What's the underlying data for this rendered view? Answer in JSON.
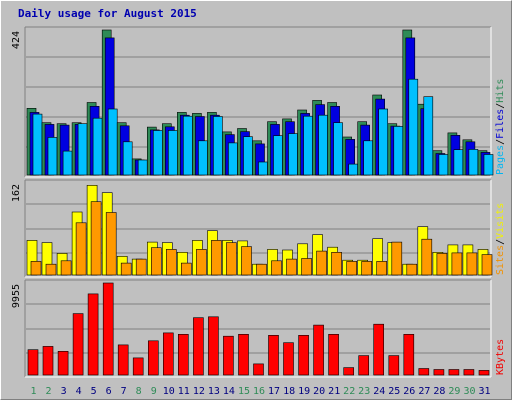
{
  "title": "Daily usage for August 2015",
  "colors": {
    "hits": "#2e8b57",
    "files": "#0000e0",
    "pages": "#00c0ff",
    "visits": "#ffff00",
    "sites": "#ff9900",
    "kbytes": "#ff0000",
    "panel_bg": "#c0c0c0",
    "grid": "#808080",
    "title": "#0000b0"
  },
  "chart_data": [
    {
      "type": "bar",
      "panel": "hits-files-pages",
      "ymax_label": "424",
      "ylim": [
        0,
        424
      ],
      "legend": [
        "Pages",
        "/",
        "Files",
        "/",
        "Hits"
      ],
      "categories": [
        "1",
        "2",
        "3",
        "4",
        "5",
        "6",
        "7",
        "8",
        "9",
        "10",
        "11",
        "12",
        "13",
        "14",
        "15",
        "16",
        "17",
        "18",
        "19",
        "20",
        "21",
        "22",
        "23",
        "24",
        "25",
        "26",
        "27",
        "28",
        "29",
        "30",
        "31"
      ],
      "series": [
        {
          "name": "Hits",
          "values": [
            195,
            153,
            150,
            153,
            212,
            424,
            153,
            47,
            140,
            150,
            183,
            180,
            183,
            126,
            136,
            100,
            156,
            164,
            190,
            218,
            212,
            111,
            156,
            234,
            150,
            424,
            207,
            71,
            123,
            103,
            71
          ]
        },
        {
          "name": "Files",
          "values": [
            183,
            148,
            146,
            148,
            201,
            401,
            144,
            44,
            132,
            141,
            175,
            171,
            175,
            118,
            127,
            91,
            148,
            156,
            180,
            206,
            201,
            104,
            146,
            222,
            143,
            401,
            194,
            63,
            116,
            97,
            66
          ]
        },
        {
          "name": "Pages",
          "values": [
            178,
            110,
            70,
            150,
            166,
            193,
            97,
            44,
            130,
            130,
            172,
            100,
            171,
            94,
            112,
            38,
            115,
            121,
            172,
            175,
            153,
            32,
            100,
            193,
            142,
            280,
            229,
            60,
            74,
            75,
            60
          ]
        }
      ]
    },
    {
      "type": "bar",
      "panel": "visits-sites",
      "ymax_label": "162",
      "ylim": [
        0,
        162
      ],
      "legend": [
        "Sites",
        "/",
        "Visits"
      ],
      "categories": [
        "1",
        "2",
        "3",
        "4",
        "5",
        "6",
        "7",
        "8",
        "9",
        "10",
        "11",
        "12",
        "13",
        "14",
        "15",
        "16",
        "17",
        "18",
        "19",
        "20",
        "21",
        "22",
        "23",
        "24",
        "25",
        "26",
        "27",
        "28",
        "29",
        "30",
        "31"
      ],
      "series": [
        {
          "name": "Visits",
          "values": [
            61,
            57,
            38,
            111,
            158,
            145,
            33,
            28,
            58,
            57,
            40,
            61,
            78,
            61,
            60,
            19,
            45,
            44,
            55,
            71,
            49,
            26,
            26,
            64,
            57,
            19,
            85,
            40,
            53,
            53,
            45
          ]
        },
        {
          "name": "Sites",
          "values": [
            24,
            19,
            25,
            92,
            129,
            110,
            21,
            28,
            48,
            45,
            21,
            45,
            61,
            57,
            50,
            19,
            25,
            28,
            29,
            42,
            40,
            24,
            24,
            24,
            58,
            19,
            63,
            38,
            39,
            39,
            36
          ]
        }
      ]
    },
    {
      "type": "bar",
      "panel": "kbytes",
      "ymax_label": "9955",
      "ylim": [
        0,
        9955
      ],
      "legend": [
        "KBytes"
      ],
      "categories": [
        "1",
        "2",
        "3",
        "4",
        "5",
        "6",
        "7",
        "8",
        "9",
        "10",
        "11",
        "12",
        "13",
        "14",
        "15",
        "16",
        "17",
        "18",
        "19",
        "20",
        "21",
        "22",
        "23",
        "24",
        "25",
        "26",
        "27",
        "28",
        "29",
        "30",
        "31"
      ],
      "series": [
        {
          "name": "KBytes",
          "values": [
            2740,
            3100,
            2560,
            6640,
            8780,
            9955,
            3260,
            1850,
            3700,
            4560,
            4400,
            6200,
            6300,
            4200,
            4400,
            1200,
            4300,
            3500,
            4300,
            5400,
            4400,
            800,
            2100,
            5500,
            2100,
            4400,
            700,
            600,
            600,
            600,
            500
          ]
        }
      ]
    }
  ],
  "x_labels": [
    {
      "text": "1",
      "weekend": true
    },
    {
      "text": "2",
      "weekend": true
    },
    {
      "text": "3",
      "weekend": false
    },
    {
      "text": "4",
      "weekend": false
    },
    {
      "text": "5",
      "weekend": false
    },
    {
      "text": "6",
      "weekend": false
    },
    {
      "text": "7",
      "weekend": false
    },
    {
      "text": "8",
      "weekend": true
    },
    {
      "text": "9",
      "weekend": true
    },
    {
      "text": "10",
      "weekend": false
    },
    {
      "text": "11",
      "weekend": false
    },
    {
      "text": "12",
      "weekend": false
    },
    {
      "text": "13",
      "weekend": false
    },
    {
      "text": "14",
      "weekend": false
    },
    {
      "text": "15",
      "weekend": true
    },
    {
      "text": "16",
      "weekend": true
    },
    {
      "text": "17",
      "weekend": false
    },
    {
      "text": "18",
      "weekend": false
    },
    {
      "text": "19",
      "weekend": false
    },
    {
      "text": "20",
      "weekend": false
    },
    {
      "text": "21",
      "weekend": false
    },
    {
      "text": "22",
      "weekend": true
    },
    {
      "text": "23",
      "weekend": true
    },
    {
      "text": "24",
      "weekend": false
    },
    {
      "text": "25",
      "weekend": false
    },
    {
      "text": "26",
      "weekend": false
    },
    {
      "text": "27",
      "weekend": false
    },
    {
      "text": "28",
      "weekend": false
    },
    {
      "text": "29",
      "weekend": true
    },
    {
      "text": "30",
      "weekend": true
    },
    {
      "text": "31",
      "weekend": false
    }
  ],
  "x_label_colors": {
    "weekday": "#000080",
    "weekend": "#2e8b57"
  }
}
